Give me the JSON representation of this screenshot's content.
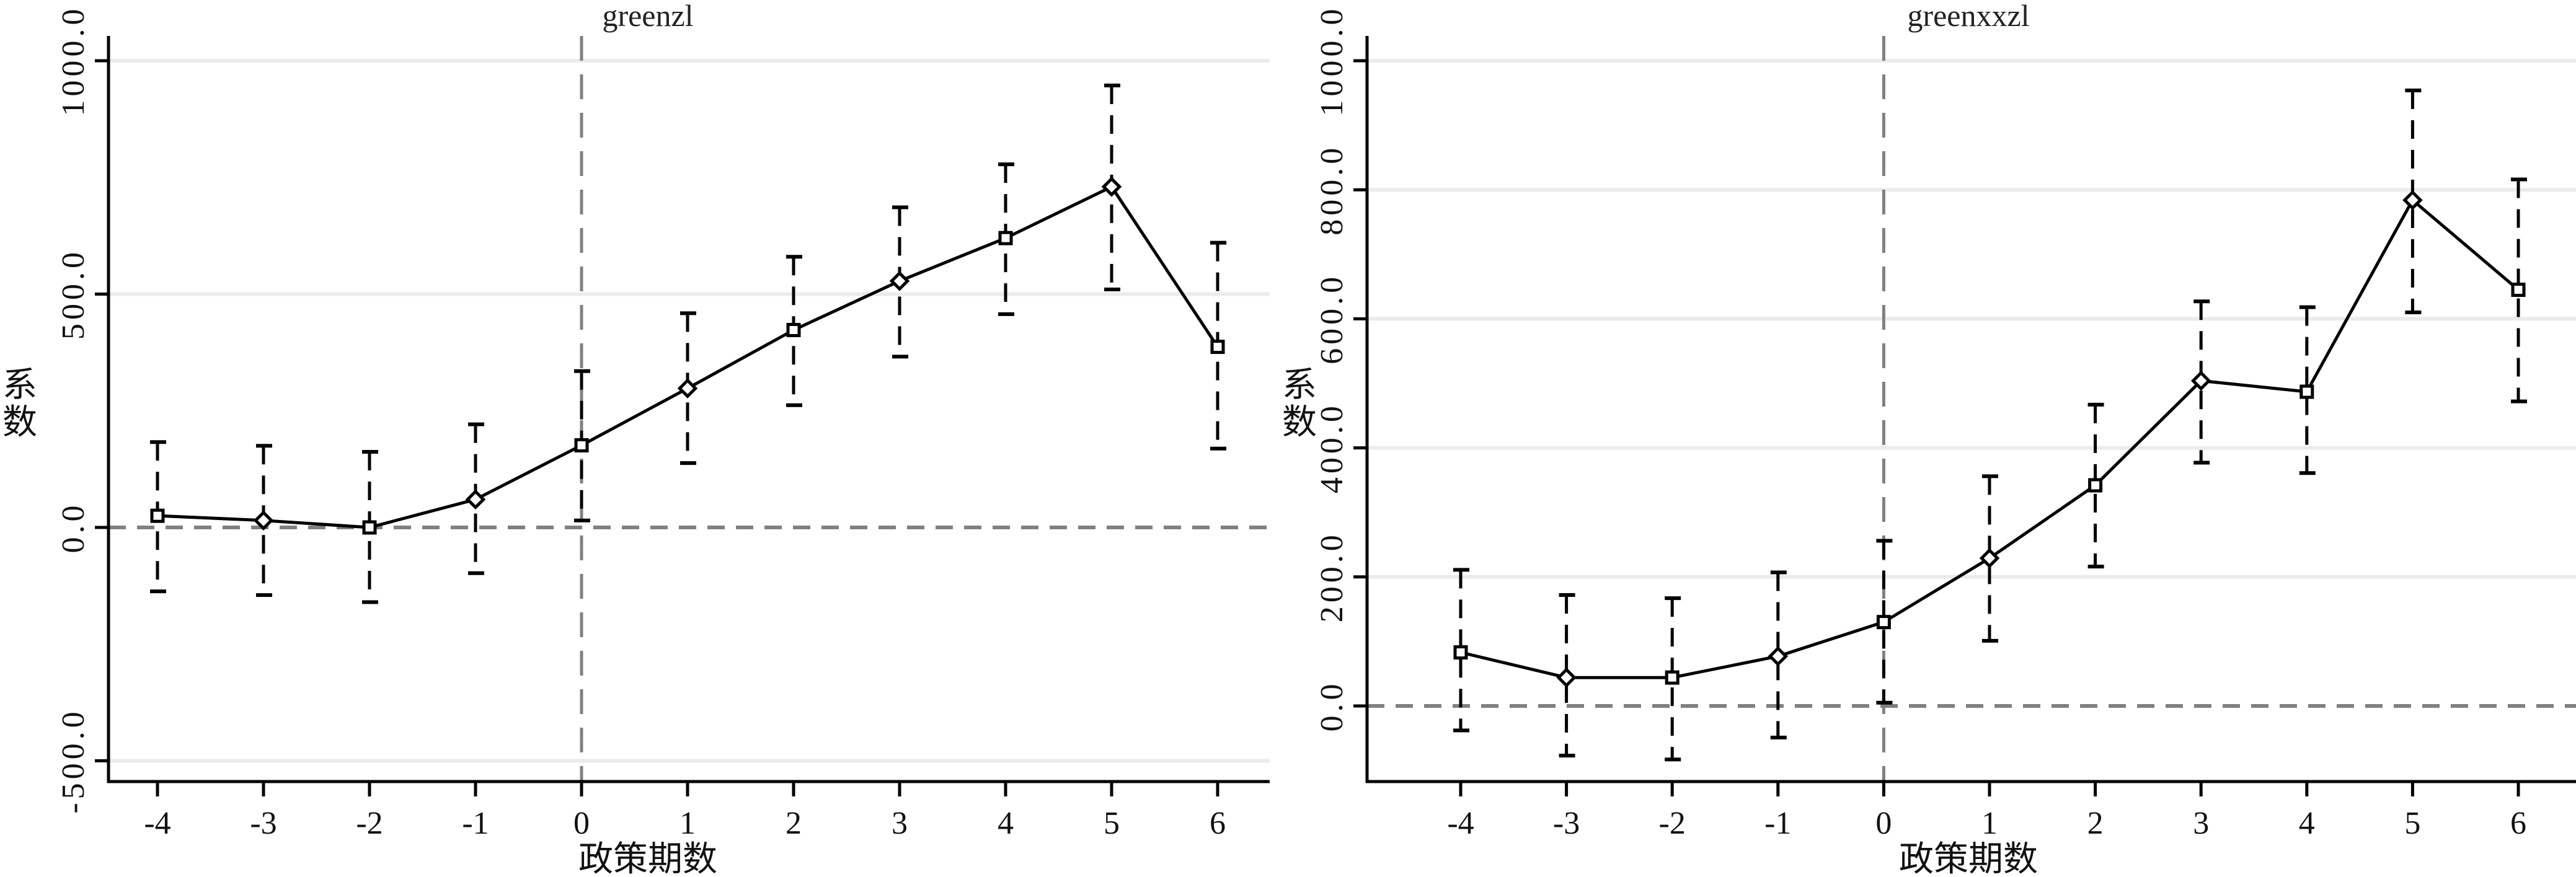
{
  "chart_data": [
    {
      "type": "line",
      "title": "greenzl",
      "xlabel": "政策期数",
      "ylabel": "系数",
      "x": [
        -4,
        -3,
        -2,
        -1,
        0,
        1,
        2,
        3,
        4,
        5,
        6
      ],
      "x_tick_labels": [
        "-4",
        "-3",
        "-2",
        "-1",
        "0",
        "1",
        "2",
        "3",
        "4",
        "5",
        "6"
      ],
      "y_ticks": [
        -500,
        0,
        500,
        1000
      ],
      "y_tick_labels": [
        "-500.0",
        "0.0",
        "500.0",
        "1000.0"
      ],
      "ylim": [
        -560,
        1080
      ],
      "xlim": [
        -4.5,
        6.4
      ],
      "grid": "horizontal",
      "reference_lines": {
        "horizontal": 0,
        "vertical": 0
      },
      "series": [
        {
          "name": "coefficient",
          "values": [
            25,
            15,
            0,
            60,
            176,
            298,
            423,
            528,
            620,
            730,
            387
          ],
          "ci_upper": [
            183,
            175,
            162,
            221,
            335,
            459,
            580,
            686,
            778,
            947,
            610
          ],
          "ci_lower": [
            -137,
            -145,
            -160,
            -98,
            15,
            138,
            262,
            366,
            457,
            510,
            169
          ]
        }
      ]
    },
    {
      "type": "line",
      "title": "greenxxzl",
      "xlabel": "政策期数",
      "ylabel": "系数",
      "x": [
        -4,
        -3,
        -2,
        -1,
        0,
        1,
        2,
        3,
        4,
        5,
        6
      ],
      "x_tick_labels": [
        "-4",
        "-3",
        "-2",
        "-1",
        "0",
        "1",
        "2",
        "3",
        "4",
        "5",
        "6"
      ],
      "y_ticks": [
        0,
        200,
        400,
        600,
        800,
        1000
      ],
      "y_tick_labels": [
        "0.0",
        "200.0",
        "400.0",
        "600.0",
        "800.0",
        "1000.0"
      ],
      "ylim": [
        -115,
        1070
      ],
      "xlim": [
        -4.5,
        6.4
      ],
      "grid": "horizontal",
      "reference_lines": {
        "horizontal": 0,
        "vertical": 0
      },
      "series": [
        {
          "name": "coefficient",
          "values": [
            83,
            44,
            44,
            77,
            130,
            229,
            342,
            504,
            487,
            784,
            645
          ],
          "ci_upper": [
            211,
            172,
            167,
            207,
            256,
            356,
            467,
            627,
            618,
            954,
            816
          ],
          "ci_lower": [
            -38,
            -77,
            -83,
            -49,
            5,
            101,
            216,
            377,
            361,
            610,
            472
          ]
        }
      ]
    }
  ],
  "colors": {
    "line": "#000000",
    "reference_line": "#808080",
    "grid": "#ebebeb",
    "axis": "#000000"
  }
}
